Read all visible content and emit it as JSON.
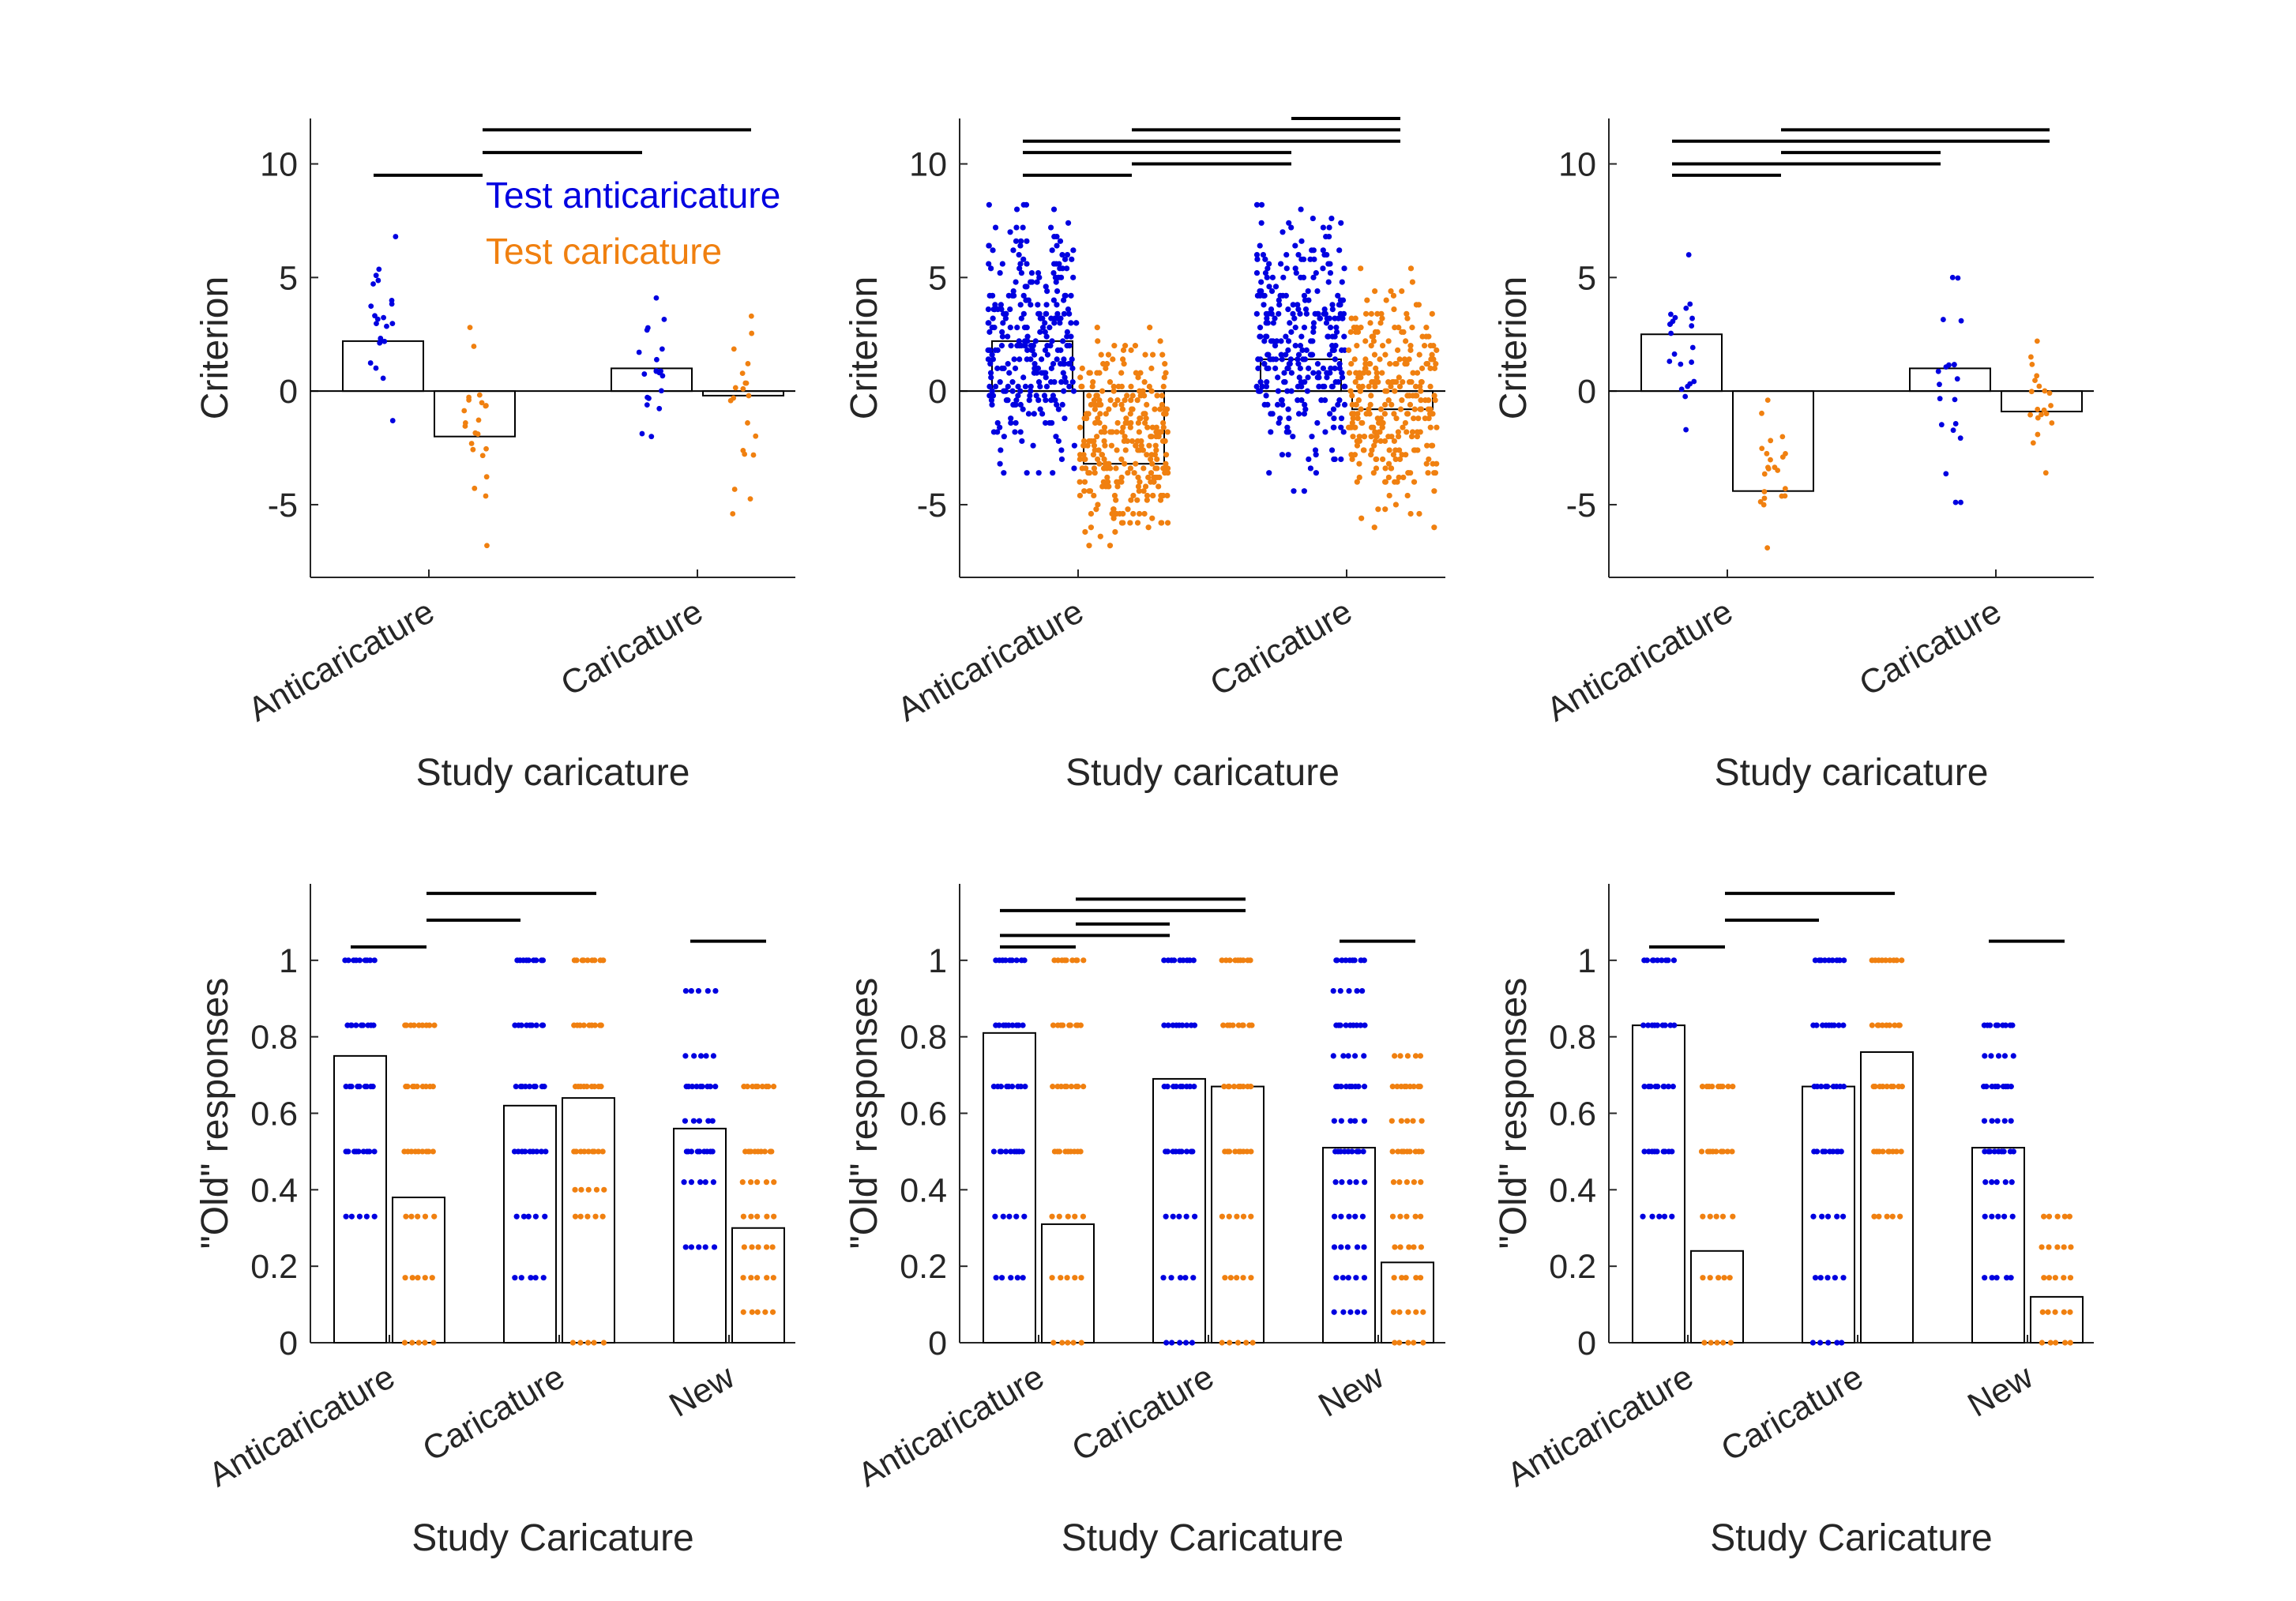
{
  "colors": {
    "test_anticaricature": "#0000e0",
    "test_caricature": "#f08010",
    "axis": "#262626",
    "sig_bar": "#000000",
    "bar_fill": "#ffffff"
  },
  "chart_data": [
    {
      "type": "bar",
      "panel": "top-left",
      "xlabel": "Study caricature",
      "ylabel": "Criterion",
      "ylim": [
        -8.2,
        12
      ],
      "yticks": [
        -5,
        0,
        5,
        10
      ],
      "ytick_labels": [
        "-5",
        "0",
        "5",
        "10"
      ],
      "categories": [
        "Anticaricature",
        "Caricature"
      ],
      "legend": {
        "position": "top-right",
        "entries": [
          "Test anticaricature",
          "Test caricature"
        ]
      },
      "series": [
        {
          "key": "test_anticaricature",
          "values": [
            2.2,
            1.0
          ],
          "spread": [
            [
              -1.3,
              6.8
            ],
            [
              -2.0,
              4.1
            ]
          ],
          "n": [
            22,
            20
          ]
        },
        {
          "key": "test_caricature",
          "values": [
            -2.0,
            -0.2
          ],
          "spread": [
            [
              -6.8,
              2.8
            ],
            [
              -5.4,
              3.3
            ]
          ],
          "n": [
            22,
            20
          ]
        }
      ],
      "significance": [
        {
          "y": 9.5,
          "from": [
            0,
            0
          ],
          "to": [
            0,
            1
          ]
        },
        {
          "y": 10.5,
          "from": [
            0,
            1
          ],
          "to": [
            1,
            0
          ]
        },
        {
          "y": 11.5,
          "from": [
            0,
            1
          ],
          "to": [
            1,
            1
          ]
        }
      ]
    },
    {
      "type": "bar",
      "panel": "top-middle",
      "xlabel": "Study caricature",
      "ylabel": "Criterion",
      "ylim": [
        -8.2,
        12
      ],
      "yticks": [
        -5,
        0,
        5,
        10
      ],
      "ytick_labels": [
        "-5",
        "0",
        "5",
        "10"
      ],
      "categories": [
        "Anticaricature",
        "Caricature"
      ],
      "series": [
        {
          "key": "test_anticaricature",
          "values": [
            2.2,
            1.4
          ],
          "spread": [
            [
              -3.6,
              8.2
            ],
            [
              -4.4,
              8.2
            ]
          ],
          "n": [
            300,
            300
          ]
        },
        {
          "key": "test_caricature",
          "values": [
            -3.2,
            -0.8
          ],
          "spread": [
            [
              -6.9,
              2.8
            ],
            [
              -6.1,
              5.4
            ]
          ],
          "n": [
            300,
            300
          ]
        }
      ],
      "significance": [
        {
          "y": 9.5,
          "from": [
            0,
            0
          ],
          "to": [
            0,
            1
          ]
        },
        {
          "y": 10.0,
          "from": [
            0,
            1
          ],
          "to": [
            1,
            0
          ]
        },
        {
          "y": 10.5,
          "from": [
            0,
            0
          ],
          "to": [
            1,
            0
          ]
        },
        {
          "y": 11.0,
          "from": [
            0,
            0
          ],
          "to": [
            1,
            1
          ]
        },
        {
          "y": 11.5,
          "from": [
            0,
            1
          ],
          "to": [
            1,
            1
          ]
        },
        {
          "y": 12.0,
          "from": [
            1,
            0
          ],
          "to": [
            1,
            1
          ]
        }
      ]
    },
    {
      "type": "bar",
      "panel": "top-right",
      "xlabel": "Study caricature",
      "ylabel": "Criterion",
      "ylim": [
        -8.2,
        12
      ],
      "yticks": [
        -5,
        0,
        5,
        10
      ],
      "ytick_labels": [
        "-5",
        "0",
        "5",
        "10"
      ],
      "categories": [
        "Anticaricature",
        "Caricature"
      ],
      "series": [
        {
          "key": "test_anticaricature",
          "values": [
            2.5,
            1.0
          ],
          "spread": [
            [
              -1.7,
              6.0
            ],
            [
              -4.9,
              5.0
            ]
          ],
          "n": [
            22,
            20
          ]
        },
        {
          "key": "test_caricature",
          "values": [
            -4.4,
            -0.9
          ],
          "spread": [
            [
              -6.9,
              -0.4
            ],
            [
              -3.6,
              2.2
            ]
          ],
          "n": [
            22,
            20
          ]
        }
      ],
      "significance": [
        {
          "y": 9.5,
          "from": [
            0,
            0
          ],
          "to": [
            0,
            1
          ]
        },
        {
          "y": 10.0,
          "from": [
            0,
            0
          ],
          "to": [
            1,
            0
          ]
        },
        {
          "y": 10.5,
          "from": [
            0,
            1
          ],
          "to": [
            1,
            0
          ]
        },
        {
          "y": 11.0,
          "from": [
            0,
            0
          ],
          "to": [
            1,
            1
          ]
        },
        {
          "y": 11.5,
          "from": [
            0,
            1
          ],
          "to": [
            1,
            1
          ]
        }
      ]
    },
    {
      "type": "bar",
      "panel": "bottom-left",
      "xlabel": "Study Caricature",
      "ylabel": "\"Old\" responses",
      "ylim": [
        0,
        1.2
      ],
      "yticks": [
        0,
        0.2,
        0.4,
        0.6,
        0.8,
        1
      ],
      "ytick_labels": [
        "0",
        "0.2",
        "0.4",
        "0.6",
        "0.8",
        "1"
      ],
      "categories": [
        "Anticaricature",
        "Caricature",
        "New"
      ],
      "series": [
        {
          "key": "test_anticaricature",
          "values": [
            0.75,
            0.62,
            0.56
          ],
          "levels": [
            [
              0.33,
              0.5,
              0.67,
              0.83,
              1.0
            ],
            [
              0.17,
              0.33,
              0.5,
              0.67,
              0.83,
              1.0
            ],
            [
              0.25,
              0.42,
              0.5,
              0.58,
              0.67,
              0.75,
              0.92
            ]
          ]
        },
        {
          "key": "test_caricature",
          "values": [
            0.38,
            0.64,
            0.3
          ],
          "levels": [
            [
              0,
              0.17,
              0.33,
              0.5,
              0.67,
              0.83
            ],
            [
              0,
              0.33,
              0.4,
              0.5,
              0.67,
              0.83,
              1.0
            ],
            [
              0.08,
              0.17,
              0.25,
              0.33,
              0.42,
              0.5,
              0.67
            ]
          ]
        }
      ],
      "significance": [
        {
          "y": 1.035,
          "from": [
            0,
            0
          ],
          "to": [
            0,
            1
          ]
        },
        {
          "y": 1.105,
          "from": [
            0,
            1
          ],
          "to": [
            1,
            0
          ]
        },
        {
          "y": 1.175,
          "from": [
            0,
            1
          ],
          "to": [
            1,
            1
          ]
        },
        {
          "y": 1.05,
          "from": [
            2,
            0
          ],
          "to": [
            2,
            1
          ]
        }
      ]
    },
    {
      "type": "bar",
      "panel": "bottom-middle",
      "xlabel": "Study Caricature",
      "ylabel": "\"Old\" responses",
      "ylim": [
        0,
        1.2
      ],
      "yticks": [
        0,
        0.2,
        0.4,
        0.6,
        0.8,
        1
      ],
      "ytick_labels": [
        "0",
        "0.2",
        "0.4",
        "0.6",
        "0.8",
        "1"
      ],
      "categories": [
        "Anticaricature",
        "Caricature",
        "New"
      ],
      "series": [
        {
          "key": "test_anticaricature",
          "values": [
            0.81,
            0.69,
            0.51
          ],
          "levels": [
            [
              0.17,
              0.33,
              0.5,
              0.67,
              0.83,
              1.0
            ],
            [
              0,
              0.17,
              0.33,
              0.5,
              0.67,
              0.83,
              1.0
            ],
            [
              0.08,
              0.17,
              0.25,
              0.33,
              0.42,
              0.5,
              0.58,
              0.67,
              0.75,
              0.83,
              0.92,
              1.0
            ]
          ]
        },
        {
          "key": "test_caricature",
          "values": [
            0.31,
            0.67,
            0.21
          ],
          "levels": [
            [
              0,
              0.17,
              0.33,
              0.5,
              0.67,
              0.83,
              1.0
            ],
            [
              0,
              0.17,
              0.33,
              0.5,
              0.67,
              0.83,
              1.0
            ],
            [
              0,
              0.08,
              0.17,
              0.25,
              0.33,
              0.42,
              0.5,
              0.58,
              0.67,
              0.75
            ]
          ]
        }
      ],
      "significance": [
        {
          "y": 1.035,
          "from": [
            0,
            0
          ],
          "to": [
            0,
            1
          ]
        },
        {
          "y": 1.065,
          "from": [
            0,
            0
          ],
          "to": [
            1,
            0
          ]
        },
        {
          "y": 1.095,
          "from": [
            0,
            1
          ],
          "to": [
            1,
            0
          ]
        },
        {
          "y": 1.13,
          "from": [
            0,
            0
          ],
          "to": [
            1,
            1
          ]
        },
        {
          "y": 1.16,
          "from": [
            0,
            1
          ],
          "to": [
            1,
            1
          ]
        },
        {
          "y": 1.05,
          "from": [
            2,
            0
          ],
          "to": [
            2,
            1
          ]
        }
      ]
    },
    {
      "type": "bar",
      "panel": "bottom-right",
      "xlabel": "Study Caricature",
      "ylabel": "\"Old\" responses",
      "ylim": [
        0,
        1.2
      ],
      "yticks": [
        0,
        0.2,
        0.4,
        0.6,
        0.8,
        1
      ],
      "ytick_labels": [
        "0",
        "0.2",
        "0.4",
        "0.6",
        "0.8",
        "1"
      ],
      "categories": [
        "Anticaricature",
        "Caricature",
        "New"
      ],
      "series": [
        {
          "key": "test_anticaricature",
          "values": [
            0.83,
            0.67,
            0.51
          ],
          "levels": [
            [
              0.33,
              0.5,
              0.67,
              0.83,
              1.0
            ],
            [
              0,
              0.17,
              0.33,
              0.5,
              0.67,
              0.83,
              1.0
            ],
            [
              0.17,
              0.33,
              0.42,
              0.5,
              0.58,
              0.67,
              0.75,
              0.83
            ]
          ]
        },
        {
          "key": "test_caricature",
          "values": [
            0.24,
            0.76,
            0.12
          ],
          "levels": [
            [
              0,
              0.17,
              0.33,
              0.5,
              0.67
            ],
            [
              0.33,
              0.5,
              0.67,
              0.83,
              1.0
            ],
            [
              0,
              0.08,
              0.17,
              0.25,
              0.33
            ]
          ]
        }
      ],
      "significance": [
        {
          "y": 1.035,
          "from": [
            0,
            0
          ],
          "to": [
            0,
            1
          ]
        },
        {
          "y": 1.105,
          "from": [
            0,
            1
          ],
          "to": [
            1,
            0
          ]
        },
        {
          "y": 1.175,
          "from": [
            0,
            1
          ],
          "to": [
            1,
            1
          ]
        },
        {
          "y": 1.05,
          "from": [
            2,
            0
          ],
          "to": [
            2,
            1
          ]
        }
      ]
    }
  ]
}
